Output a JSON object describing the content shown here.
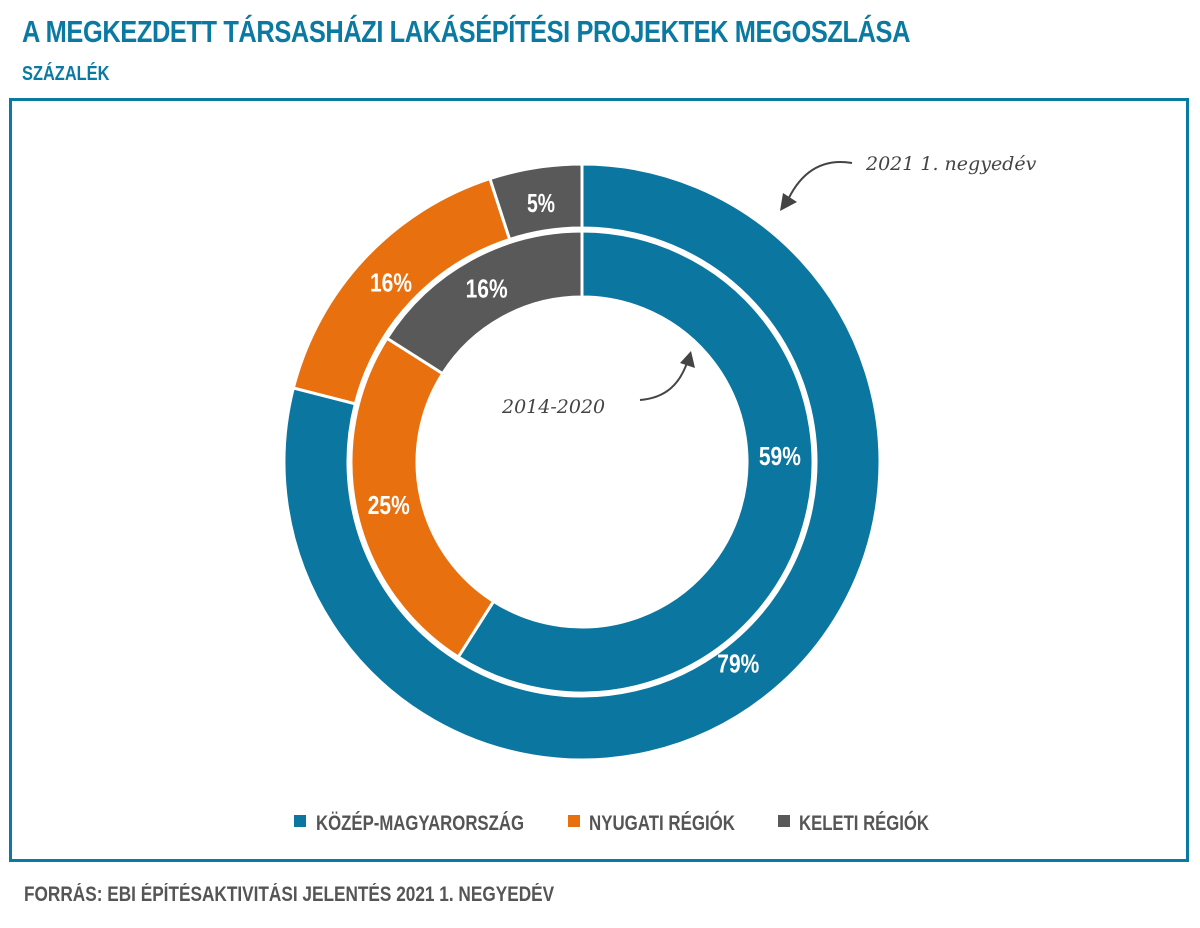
{
  "title": "A MEGKEZDETT TÁRSASHÁZI LAKÁSÉPÍTÉSI PROJEKTEK MEGOSZLÁSA",
  "subtitle": "SZÁZALÉK",
  "source": "FORRÁS: EBI ÉPÍTÉSAKTIVITÁSI JELENTÉS 2021 1. NEGYEDÉV",
  "chart_data": {
    "type": "pie",
    "variant": "nested-donut",
    "categories": [
      "KÖZÉP-MAGYARORSZÁG",
      "NYUGATI RÉGIÓK",
      "KELETI RÉGIÓK"
    ],
    "colors": [
      "#0b76a0",
      "#e8700f",
      "#595959"
    ],
    "series": [
      {
        "name": "2021 1. negyedév",
        "ring": "outer",
        "values": [
          79,
          16,
          5
        ],
        "labels": [
          "79%",
          "16%",
          "5%"
        ]
      },
      {
        "name": "2014-2020",
        "ring": "inner",
        "values": [
          59,
          25,
          16
        ],
        "labels": [
          "59%",
          "25%",
          "16%"
        ]
      }
    ],
    "legend": {
      "position": "bottom",
      "items": [
        "KÖZÉP-MAGYARORSZÁG",
        "NYUGATI RÉGIÓK",
        "KELETI RÉGIÓK"
      ]
    }
  }
}
